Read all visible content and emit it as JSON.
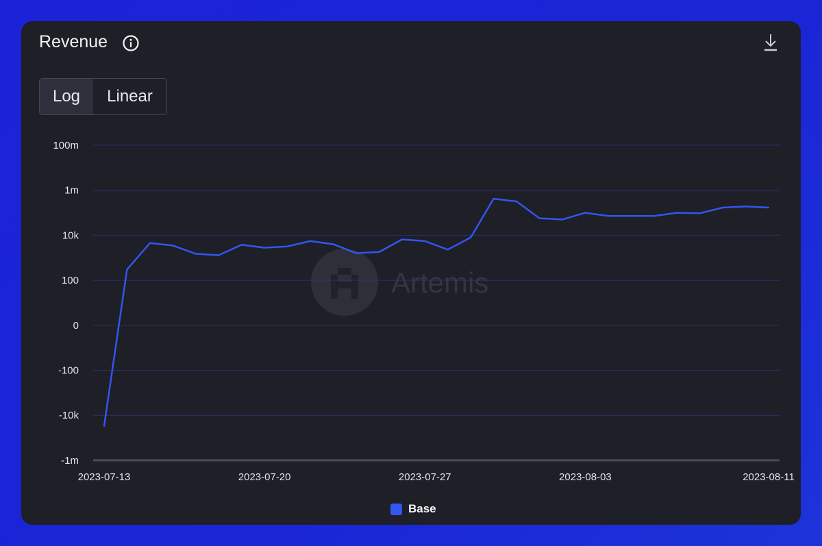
{
  "header": {
    "title": "Revenue",
    "download_icon": "download-icon",
    "info_icon": "info-icon"
  },
  "scale_toggle": {
    "options": [
      "Log",
      "Linear"
    ],
    "selected": "Log"
  },
  "watermark": "Artemis",
  "colors": {
    "series": "#3355f0",
    "grid": "#2c3170",
    "background": "#1e1f27"
  },
  "chart_data": {
    "type": "line",
    "title": "Revenue",
    "xlabel": "",
    "ylabel": "",
    "y_scale": "symlog",
    "y_tick_labels": [
      "100m",
      "1m",
      "10k",
      "100",
      "0",
      "-100",
      "-10k",
      "-1m"
    ],
    "y_tick_values": [
      100000000,
      1000000,
      10000,
      100,
      0,
      -100,
      -10000,
      -1000000
    ],
    "x_tick_labels": [
      "2023-07-13",
      "2023-07-20",
      "2023-07-27",
      "2023-08-03",
      "2023-08-11"
    ],
    "grid": true,
    "legend_position": "bottom-center",
    "series": [
      {
        "name": "Base",
        "x": [
          "2023-07-13",
          "2023-07-14",
          "2023-07-15",
          "2023-07-16",
          "2023-07-17",
          "2023-07-18",
          "2023-07-19",
          "2023-07-20",
          "2023-07-21",
          "2023-07-22",
          "2023-07-23",
          "2023-07-24",
          "2023-07-25",
          "2023-07-26",
          "2023-07-27",
          "2023-07-28",
          "2023-07-29",
          "2023-07-30",
          "2023-07-31",
          "2023-08-01",
          "2023-08-02",
          "2023-08-03",
          "2023-08-04",
          "2023-08-05",
          "2023-08-06",
          "2023-08-07",
          "2023-08-08",
          "2023-08-09",
          "2023-08-10",
          "2023-08-11"
        ],
        "values": [
          -30000,
          300,
          4500,
          3500,
          1500,
          1300,
          3800,
          2800,
          3200,
          5500,
          4000,
          1600,
          1800,
          6500,
          5500,
          2300,
          8000,
          420000,
          320000,
          57000,
          50000,
          100000,
          72000,
          72000,
          72000,
          100000,
          95000,
          170000,
          190000,
          170000
        ]
      }
    ]
  },
  "legend": {
    "label": "Base"
  }
}
